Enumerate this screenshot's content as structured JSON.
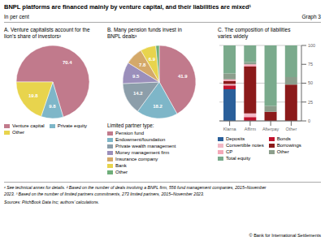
{
  "title": "BNPL platforms are financed mainly by venture capital, and their liabilities are mixed¹",
  "subtitle": "In per cent",
  "annotations": [
    "Graph 3",
    "¹ See technical annex for details.  ² Based on the number of deals involving a BNPL firm, 556 fund management companies, 2015–November",
    "2023.  ³ Based on the number of limited partners commitments, 273 limited partners, 2015–November 2023.",
    "Sources: PitchBook Data Inc; authors’ calculations.",
    "© Bank for International Settlements"
  ],
  "chart_data": [
    {
      "type": "pie",
      "title": "A. Venture capitalists account for the\nlion’s share of investors²",
      "categories": [
        "Venture capital",
        "Private equity",
        "Other"
      ],
      "values": [
        70.4,
        9.8,
        19.8
      ],
      "colors": [
        "#c17a8c",
        "#7eb6c8",
        "#e8d44d"
      ],
      "data_labels": true,
      "legend": "bottom"
    },
    {
      "type": "pie",
      "title": "B. Many pension funds invest in\nBNPL deals³",
      "legend_title": "Limited partner type:",
      "categories": [
        "Pension fund",
        "Endowment/foundation",
        "Private wealth management",
        "Money management firm",
        "Insurance company",
        "Bank",
        "Other"
      ],
      "values": [
        41.9,
        18.2,
        14.2,
        9.5,
        7.8,
        6.9,
        1.5
      ],
      "value_labels": [
        "41.9",
        "18.2",
        "14.2",
        "9.5",
        "7.8",
        "6.9",
        null
      ],
      "colors": [
        "#c17a8c",
        "#7eb6c8",
        "#8c9eaa",
        "#9b8fbb",
        "#d4a96a",
        "#e8d44d",
        "#6fae7a"
      ],
      "data_labels": true,
      "legend": "bottom"
    },
    {
      "type": "bar",
      "stacked": true,
      "title": "C. The composition of liabilities\nvaries widely",
      "categories": [
        "Klarna",
        "Affirm",
        "Afterpay",
        "Other"
      ],
      "series": [
        {
          "name": "Deposits",
          "color": "#2a5f9a",
          "values": [
            42,
            0,
            0,
            0
          ]
        },
        {
          "name": "Bonds",
          "color": "#c0122c",
          "values": [
            5,
            5,
            0,
            0
          ]
        },
        {
          "name": "Convertible notes",
          "color": "#f2b8c6",
          "values": [
            2,
            5,
            0,
            0
          ]
        },
        {
          "name": "Borrowings",
          "color": "#8b1a1a",
          "values": [
            4,
            62,
            12,
            48
          ]
        },
        {
          "name": "CP",
          "color": "#f4a8b8",
          "values": [
            2,
            3,
            0,
            0
          ]
        },
        {
          "name": "Other",
          "color": "#8c9e8c",
          "values": [
            8,
            3,
            8,
            10
          ]
        },
        {
          "name": "Total equity",
          "color": "#7aaa8c",
          "values": [
            37,
            22,
            80,
            42
          ]
        }
      ],
      "ylim": [
        0,
        100
      ],
      "yticks": [
        0,
        25,
        50,
        75,
        100
      ],
      "grid": true,
      "legend": "bottom"
    }
  ]
}
